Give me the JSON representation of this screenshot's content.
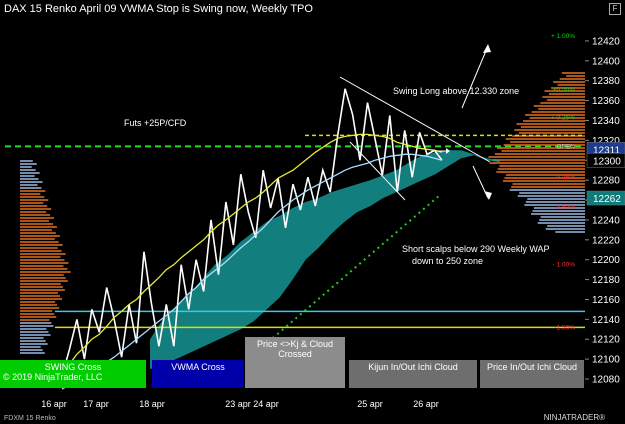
{
  "window": {
    "title": "DAX 15 Renko April 09 VWMA  Stop is Swing now, Weekly TPO",
    "corner_glyph": "F",
    "instrument_footer": "FDXM 15 Renko",
    "brand_footer": "NINJATRADER®"
  },
  "annotations": {
    "futs": "Futs +25P/CFD",
    "swing_long": "Swing Long above 12.330 zone",
    "short_scalps_1": "Short scalps below 290 Weekly WAP",
    "short_scalps_2": "down to 250 zone",
    "open_label": "OPEN",
    "copyright": "© 2019 NinjaTrader, LLC"
  },
  "panels": [
    {
      "label": "SWING Cross",
      "color": "#00cc00",
      "text_color": "#ffffff"
    },
    {
      "label": "VWMA Cross",
      "color": "#0000aa",
      "text_color": "#ffffff"
    },
    {
      "label": "Price <>Kj & Cloud\nCrossed",
      "color": "#8c8c8c",
      "text_color": "#ffffff"
    },
    {
      "label": "Kijun In/Out Ichi Cloud",
      "color": "#6e6e6e",
      "text_color": "#ffffff"
    },
    {
      "label": "Price In/Out Ichi Cloud",
      "color": "#6e6e6e",
      "text_color": "#ffffff"
    }
  ],
  "price_axis": {
    "ticks": [
      12420,
      12400,
      12380,
      12360,
      12340,
      12320,
      12300,
      12280,
      12260,
      12240,
      12220,
      12200,
      12180,
      12160,
      12140,
      12120,
      12100,
      12080
    ],
    "ylim": [
      12076,
      12432
    ],
    "markers": [
      {
        "value": 12311,
        "label": "12311",
        "bg": "#1e3c8c",
        "fg": "#ffffff"
      },
      {
        "value": 12300,
        "label": "12300",
        "bg": "#000000",
        "fg": "#ffffff"
      },
      {
        "value": 12262,
        "label": "12262",
        "bg": "#0f7a7a",
        "fg": "#ffffff"
      }
    ]
  },
  "percent_labels": [
    {
      "label": "+ 1.00%",
      "price": 12426,
      "color": "#00dd00"
    },
    {
      "label": "+0.50%",
      "price": 12372,
      "color": "#00dd00"
    },
    {
      "label": "+ 0.25%",
      "price": 12344,
      "color": "#00dd00"
    },
    {
      "label": "OPEN",
      "price": 12315,
      "color": "#cccccc"
    },
    {
      "label": "-0.25%",
      "price": 12284,
      "color": "#ff3333"
    },
    {
      "label": "-0.50%",
      "price": 12254,
      "color": "#ff3333"
    },
    {
      "label": "- 1.00%",
      "price": 12196,
      "color": "#ff3333"
    },
    {
      "label": "-1.50%",
      "price": 12133,
      "color": "#ff3333"
    }
  ],
  "date_labels": [
    "16 apr",
    "17 apr",
    "18 apr",
    "23 apr 24 apr",
    "25 apr",
    "26 apr"
  ],
  "colors": {
    "price_line": "#ffffff",
    "vwma": "#e8e83a",
    "swing_line": "#aaddff",
    "cloud": "#1aa8a8",
    "weekly_wap": "#33ccee",
    "level_dashed": "#22dd22",
    "trend_dotted": "#22cc22",
    "yellow_dash": "#dddd00",
    "profile_up": "#c8641e",
    "profile_dn": "#8aa6c8"
  },
  "chart_data": {
    "type": "line",
    "series": [
      {
        "values": [
          12083,
          12110,
          12140,
          12100,
          12150,
          12127,
          12172,
          12140,
          12102,
          12155,
          12116,
          12208,
          12156,
          12113,
          12155,
          12113,
          12195,
          12150,
          12200,
          12168,
          12240,
          12185,
          12258,
          12215,
          12286,
          12248,
          12222,
          12290,
          12252,
          12282,
          12232,
          12276,
          12250,
          12283,
          12254,
          12290,
          12268,
          12325,
          12372,
          12346,
          12300,
          12358,
          12322,
          12285,
          12345,
          12268,
          12330,
          12283,
          12328,
          12306,
          12310,
          12300
        ]
      },
      {
        "values": [
          12085,
          12095,
          12105,
          12112,
          12120,
          12125,
          12133,
          12142,
          12148,
          12155,
          12160,
          12168,
          12175,
          12182,
          12190,
          12195,
          12202,
          12208,
          12214,
          12220,
          12228,
          12235,
          12240,
          12246,
          12252,
          12258,
          12262,
          12268,
          12275,
          12282,
          12286,
          12290,
          12296,
          12302,
          12308,
          12313,
          12318,
          12322,
          12324,
          12325,
          12326,
          12326,
          12325,
          12324,
          12322,
          12318,
          12316,
          12314,
          12312,
          12311,
          12310,
          12308
        ]
      },
      {
        "values": [
          12070,
          12074,
          12078,
          12083,
          12088,
          12092,
          12097,
          12102,
          12108,
          12114,
          12120,
          12126,
          12132,
          12138,
          12144,
          12150,
          12158,
          12166,
          12172,
          12180,
          12186,
          12192,
          12198,
          12205,
          12212,
          12218,
          12225,
          12232,
          12240,
          12248,
          12254,
          12260,
          12265,
          12270,
          12274,
          12278,
          12282,
          12286,
          12290,
          12293,
          12295,
          12297,
          12300,
          12302,
          12304,
          12305,
          12306,
          12306,
          12305,
          12304,
          12302,
          12300
        ]
      }
    ],
    "cloud": {
      "upper": [
        12120,
        12140,
        12152,
        12165,
        12180,
        12195,
        12205,
        12218,
        12228,
        12238,
        12244,
        12252,
        12258,
        12262,
        12268,
        12272,
        12276,
        12280,
        12285,
        12290,
        12298,
        12305,
        12308,
        12310,
        12310,
        12306,
        12302,
        12300
      ],
      "lower": [
        12090,
        12094,
        12100,
        12106,
        12112,
        12118,
        12124,
        12130,
        12138,
        12150,
        12162,
        12180,
        12200,
        12212,
        12226,
        12238,
        12248,
        12254,
        12262,
        12268,
        12274,
        12280,
        12286,
        12294,
        12302,
        12305,
        12300,
        12298
      ]
    },
    "levels": [
      {
        "price": 12314,
        "style": "dashed",
        "color": "#22dd22"
      },
      {
        "price": 12325,
        "style": "dashed",
        "color": "#dddd00"
      },
      {
        "price": 12148,
        "style": "solid",
        "color": "#33ccee"
      },
      {
        "price": 12132,
        "style": "solid",
        "color": "#dddd00"
      }
    ]
  }
}
